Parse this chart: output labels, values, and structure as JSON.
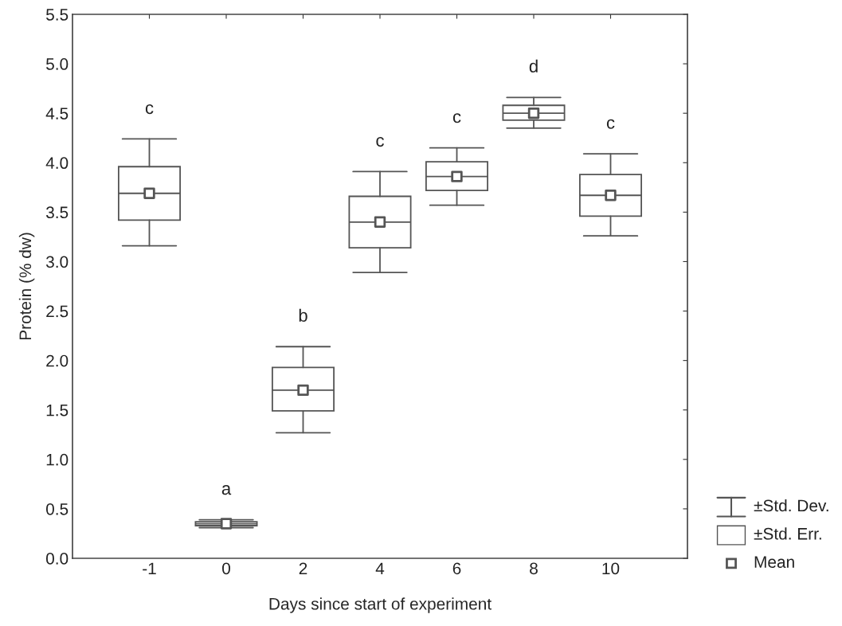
{
  "chart_data": {
    "type": "box",
    "xlabel": "Days since start of experiment",
    "ylabel": "Protein (% dw)",
    "categories": [
      "-1",
      "0",
      "2",
      "4",
      "6",
      "8",
      "10"
    ],
    "boxes": [
      {
        "low": 3.16,
        "q1": 3.42,
        "median": 3.69,
        "q3": 3.96,
        "high": 4.24,
        "mean": 3.69
      },
      {
        "low": 0.31,
        "q1": 0.33,
        "median": 0.35,
        "q3": 0.37,
        "high": 0.39,
        "mean": 0.35
      },
      {
        "low": 1.27,
        "q1": 1.49,
        "median": 1.7,
        "q3": 1.93,
        "high": 2.14,
        "mean": 1.7
      },
      {
        "low": 2.89,
        "q1": 3.14,
        "median": 3.4,
        "q3": 3.66,
        "high": 3.91,
        "mean": 3.4
      },
      {
        "low": 3.57,
        "q1": 3.72,
        "median": 3.86,
        "q3": 4.01,
        "high": 4.15,
        "mean": 3.86
      },
      {
        "low": 4.35,
        "q1": 4.43,
        "median": 4.5,
        "q3": 4.58,
        "high": 4.66,
        "mean": 4.5
      },
      {
        "low": 3.26,
        "q1": 3.46,
        "median": 3.67,
        "q3": 3.88,
        "high": 4.09,
        "mean": 3.67
      }
    ],
    "color": "#555555",
    "marker": "square",
    "ylim": [
      0,
      5.5
    ],
    "yticks": [
      {
        "value": 0,
        "label": "0.0"
      },
      0.5,
      {
        "value": 1,
        "label": "1.0"
      },
      1.5,
      {
        "value": 2,
        "label": "2.0"
      },
      2.5,
      {
        "value": 3,
        "label": "3.0"
      },
      3.5,
      {
        "value": 4,
        "label": "4.0"
      },
      4.5,
      {
        "value": 5,
        "label": "5.0"
      },
      5.5
    ],
    "annotations": [
      "c",
      "a",
      "b",
      "c",
      "c",
      "d",
      "c",
      "±Std. Dev.",
      "±Std. Err.",
      "Mean"
    ],
    "grid": false
  }
}
